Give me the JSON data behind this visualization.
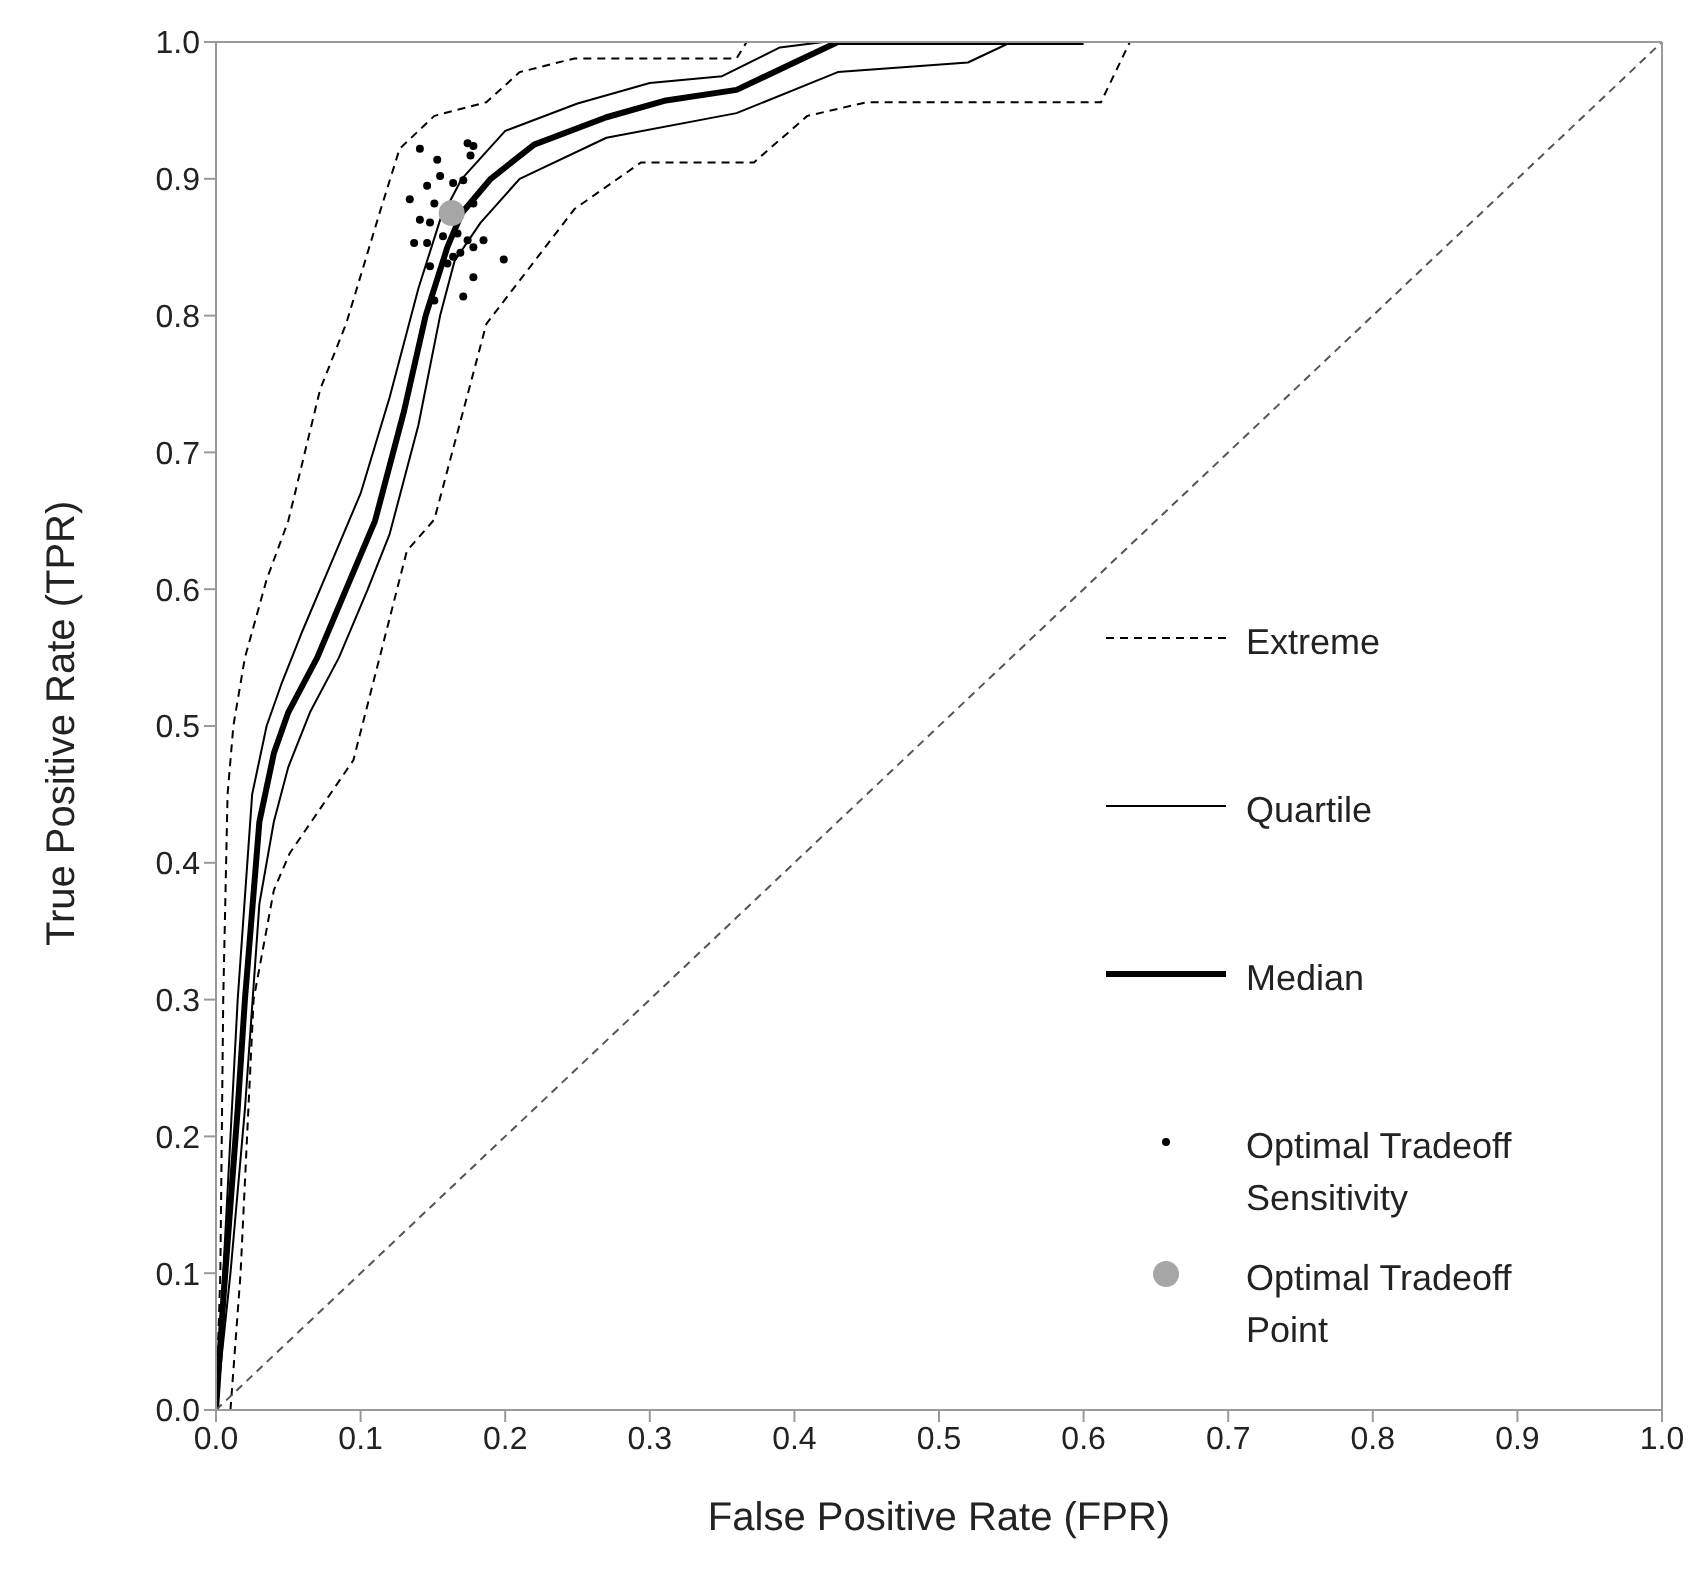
{
  "chart_data": {
    "type": "line",
    "xlabel": "False Positive Rate (FPR)",
    "ylabel": "True Positive Rate (TPR)",
    "xlim": [
      0,
      1
    ],
    "ylim": [
      0,
      1
    ],
    "xticks": [
      {
        "value": 0,
        "label": "0.0"
      },
      0.1,
      0.2,
      0.3,
      0.4,
      0.5,
      0.6,
      0.7,
      0.8,
      0.9,
      {
        "value": 1,
        "label": "1.0"
      }
    ],
    "yticks": [
      {
        "value": 0,
        "label": "0.0"
      },
      0.1,
      0.2,
      0.3,
      0.4,
      0.5,
      0.6,
      0.7,
      0.8,
      0.9,
      {
        "value": 1,
        "label": "1.0"
      }
    ],
    "grid": false,
    "legend": "right",
    "marker": "none",
    "series": [
      {
        "name": "Extreme",
        "color": "#000000",
        "line_style": "dashed",
        "x": [
          0,
          0.003,
          0.005,
          0.008,
          0.012,
          0.02,
          0.035,
          0.05,
          0.072,
          0.09,
          0.114,
          0.127,
          0.151,
          0.187,
          0.21,
          0.248,
          0.36,
          0.367
        ],
        "values": [
          0,
          0.1,
          0.3,
          0.45,
          0.5,
          0.55,
          0.607,
          0.65,
          0.746,
          0.794,
          0.878,
          0.922,
          0.946,
          0.956,
          0.978,
          0.988,
          0.988,
          1.0
        ]
      },
      {
        "color": "#000000",
        "line_style": "dashed",
        "x": [
          0.01,
          0.017,
          0.026,
          0.04,
          0.051,
          0.095,
          0.132,
          0.151,
          0.187,
          0.248,
          0.294,
          0.372,
          0.409,
          0.45,
          0.612,
          0.632
        ],
        "values": [
          0,
          0.1,
          0.3,
          0.38,
          0.407,
          0.475,
          0.628,
          0.651,
          0.794,
          0.878,
          0.912,
          0.912,
          0.946,
          0.956,
          0.956,
          1.0
        ]
      },
      {
        "name": "Quartile",
        "color": "#000000",
        "line_style": "solid",
        "x": [
          0,
          0.005,
          0.01,
          0.015,
          0.025,
          0.035,
          0.045,
          0.06,
          0.08,
          0.1,
          0.12,
          0.14,
          0.155,
          0.17,
          0.2,
          0.25,
          0.3,
          0.35,
          0.39,
          0.42,
          0.6
        ],
        "values": [
          0,
          0.1,
          0.2,
          0.3,
          0.45,
          0.5,
          0.53,
          0.57,
          0.62,
          0.67,
          0.74,
          0.82,
          0.87,
          0.9,
          0.935,
          0.955,
          0.97,
          0.975,
          0.996,
          1.0,
          1.0
        ]
      },
      {
        "color": "#000000",
        "line_style": "solid",
        "x": [
          0,
          0.01,
          0.02,
          0.03,
          0.04,
          0.05,
          0.065,
          0.085,
          0.105,
          0.12,
          0.14,
          0.155,
          0.165,
          0.183,
          0.21,
          0.27,
          0.36,
          0.43,
          0.52,
          0.55
        ],
        "values": [
          0,
          0.1,
          0.22,
          0.37,
          0.43,
          0.47,
          0.51,
          0.55,
          0.6,
          0.64,
          0.72,
          0.8,
          0.84,
          0.868,
          0.9,
          0.93,
          0.948,
          0.978,
          0.985,
          1.0
        ]
      },
      {
        "name": "Median",
        "color": "#000000",
        "line_style": "solid",
        "x": [
          0,
          0.005,
          0.01,
          0.015,
          0.02,
          0.03,
          0.04,
          0.05,
          0.07,
          0.09,
          0.11,
          0.13,
          0.145,
          0.16,
          0.17,
          0.19,
          0.22,
          0.27,
          0.31,
          0.36,
          0.4,
          0.43,
          0.6
        ],
        "values": [
          0,
          0.08,
          0.15,
          0.22,
          0.3,
          0.43,
          0.48,
          0.51,
          0.55,
          0.6,
          0.65,
          0.73,
          0.8,
          0.85,
          0.875,
          0.9,
          0.925,
          0.945,
          0.957,
          0.965,
          0.985,
          1.0,
          1.0
        ]
      },
      {
        "name": "Optimal Tradeoff Sensitivity",
        "type": "scatter",
        "color": "#000000",
        "marker": "circle",
        "x": [
          0.141,
          0.153,
          0.174,
          0.178,
          0.176,
          0.155,
          0.164,
          0.171,
          0.146,
          0.134,
          0.151,
          0.141,
          0.148,
          0.137,
          0.146,
          0.157,
          0.167,
          0.174,
          0.178,
          0.185,
          0.199,
          0.169,
          0.164,
          0.16,
          0.148,
          0.178,
          0.171,
          0.151,
          0.155,
          0.178
        ],
        "values": [
          0.922,
          0.914,
          0.926,
          0.924,
          0.917,
          0.902,
          0.897,
          0.899,
          0.895,
          0.885,
          0.882,
          0.87,
          0.868,
          0.853,
          0.853,
          0.858,
          0.86,
          0.855,
          0.85,
          0.855,
          0.841,
          0.846,
          0.843,
          0.838,
          0.836,
          0.828,
          0.814,
          0.811,
          null,
          0.882
        ]
      },
      {
        "name": "Optimal Tradeoff Point",
        "type": "scatter",
        "color": "#a6a6a6",
        "marker": "circle",
        "x": [
          0.163
        ],
        "values": [
          0.875
        ]
      },
      {
        "color": "#555555",
        "line_style": "dashed",
        "x": [
          0,
          1
        ],
        "values": [
          0,
          1
        ]
      }
    ]
  }
}
